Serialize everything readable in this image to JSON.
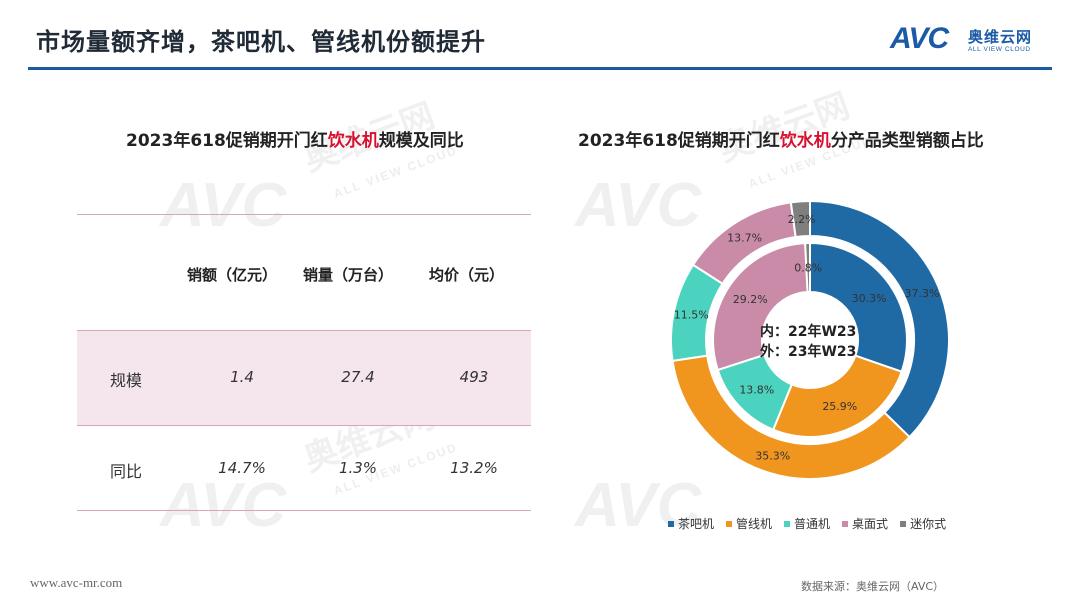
{
  "header": {
    "title": "市场量额齐增，茶吧机、管线机份额提升",
    "logo": {
      "mark": "AVC",
      "name_cn": "奥维云网",
      "name_en": "ALL VIEW CLOUD"
    }
  },
  "watermark": {
    "mark": "AVC",
    "name_cn": "奥维云网",
    "name_en": "ALL VIEW CLOUD"
  },
  "left_panel": {
    "title_prefix": "2023年618促销期开门红",
    "title_highlight": "饮水机",
    "title_suffix": "规模及同比",
    "headers": [
      "销额（亿元）",
      "销量（万台）",
      "均价（元）"
    ],
    "rows": [
      {
        "label": "规模",
        "values": [
          "1.4",
          "27.4",
          "493"
        ]
      },
      {
        "label": "同比",
        "values": [
          "14.7%",
          "1.3%",
          "13.2%"
        ]
      }
    ]
  },
  "right_panel": {
    "title_prefix": "2023年618促销期开门红",
    "title_highlight": "饮水机",
    "title_suffix": "分产品类型销额占比",
    "center_line1": "内：22年W23",
    "center_line2": "外：23年W23"
  },
  "chart_data": {
    "type": "pie",
    "title": "2023年618促销期开门红饮水机分产品类型销额占比",
    "categories": [
      "茶吧机",
      "管线机",
      "普通机",
      "桌面式",
      "迷你式"
    ],
    "colors": [
      "#1f6aa5",
      "#f0961f",
      "#4cd3bf",
      "#c98ba8",
      "#7f7f7f"
    ],
    "series": [
      {
        "name": "内：22年W23",
        "values": [
          30.3,
          25.9,
          13.8,
          29.2,
          0.8
        ]
      },
      {
        "name": "外：23年W23",
        "values": [
          37.3,
          35.3,
          11.5,
          13.7,
          2.2
        ]
      }
    ],
    "legend_position": "bottom"
  },
  "footer": {
    "url": "www.avc-mr.com",
    "source": "数据来源：奥维云网（AVC）"
  }
}
